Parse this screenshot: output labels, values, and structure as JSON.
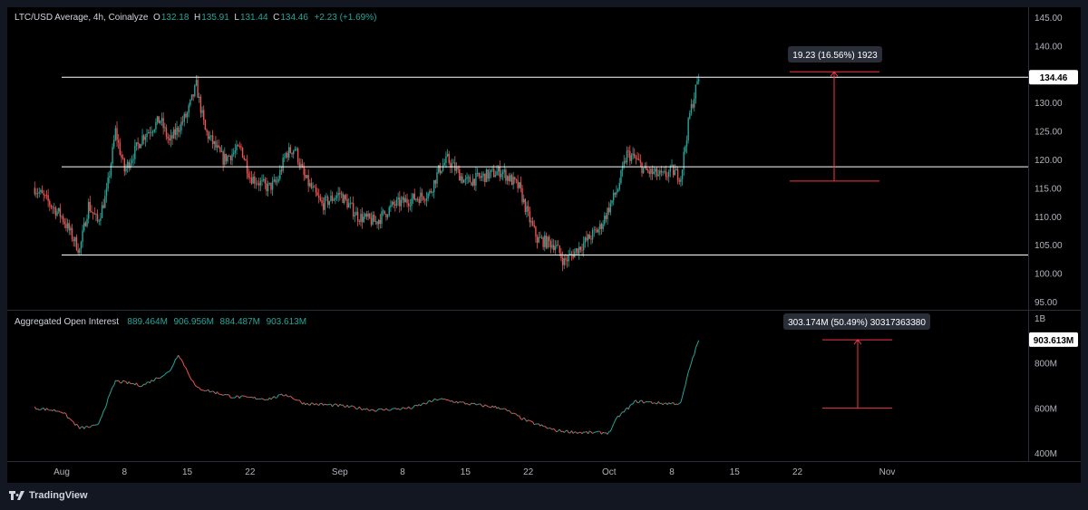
{
  "legend": {
    "symbol": "LTC/USD Average, 4h, Coinalyze",
    "open_label": "O",
    "open": "132.18",
    "high_label": "H",
    "high": "135.91",
    "low_label": "L",
    "low": "131.44",
    "close_label": "C",
    "close": "134.46",
    "change": "+2.23 (+1.69%)"
  },
  "oi_legend": {
    "name": "Aggregated Open Interest",
    "v1": "889.464M",
    "v2": "906.956M",
    "v3": "884.487M",
    "v4": "903.613M"
  },
  "brand": "TradingView",
  "colors": {
    "up": "#26a69a",
    "down": "#ef5350",
    "measure": "#f23645",
    "bg": "#000000",
    "frame": "#131722",
    "line": "#ffffff"
  },
  "chart_data": [
    {
      "type": "candlestick",
      "series": [
        {
          "name": "LTC/USD Average, 4h, Coinalyze"
        }
      ],
      "ylim": [
        93,
        146
      ],
      "yticks": [
        "95.00",
        "100.00",
        "105.00",
        "110.00",
        "115.00",
        "120.00",
        "125.00",
        "130.00",
        "135.00",
        "140.00",
        "145.00"
      ],
      "xticks": [
        "Aug",
        "8",
        "15",
        "22",
        "Sep",
        "8",
        "15",
        "22",
        "Oct",
        "8",
        "15",
        "22",
        "Nov"
      ],
      "last_price_label": "134.46",
      "horizontal_lines": [
        134.46,
        118.7,
        103.2
      ],
      "measure": {
        "label": "19.23 (16.56%) 1923",
        "from": 116.2,
        "to": 135.4
      },
      "path": [
        [
          "Jul 29",
          115
        ],
        [
          "Aug 1",
          110
        ],
        [
          "Aug 2",
          107
        ],
        [
          "Aug 3",
          104
        ],
        [
          "Aug 4",
          112
        ],
        [
          "Aug 5",
          109
        ],
        [
          "Aug 6",
          114
        ],
        [
          "Aug 7",
          125
        ],
        [
          "Aug 8",
          118
        ],
        [
          "Aug 10",
          124
        ],
        [
          "Aug 12",
          127
        ],
        [
          "Aug 13",
          123
        ],
        [
          "Aug 15",
          128
        ],
        [
          "Aug 16",
          133
        ],
        [
          "Aug 17",
          125
        ],
        [
          "Aug 19",
          120
        ],
        [
          "Aug 21",
          122
        ],
        [
          "Aug 22",
          117
        ],
        [
          "Aug 24",
          115
        ],
        [
          "Aug 25",
          116
        ],
        [
          "Aug 26",
          121
        ],
        [
          "Aug 27",
          122
        ],
        [
          "Aug 28",
          117
        ],
        [
          "Aug 30",
          112
        ],
        [
          "Sep 1",
          114
        ],
        [
          "Sep 3",
          110
        ],
        [
          "Sep 5",
          109
        ],
        [
          "Sep 7",
          112
        ],
        [
          "Sep 9",
          113
        ],
        [
          "Sep 11",
          114
        ],
        [
          "Sep 12",
          118
        ],
        [
          "Sep 13",
          120
        ],
        [
          "Sep 15",
          116
        ],
        [
          "Sep 17",
          117
        ],
        [
          "Sep 19",
          118
        ],
        [
          "Sep 21",
          115
        ],
        [
          "Sep 22",
          110
        ],
        [
          "Sep 23",
          106
        ],
        [
          "Sep 25",
          105
        ],
        [
          "Sep 26",
          102
        ],
        [
          "Sep 28",
          105
        ],
        [
          "Sep 30",
          108
        ],
        [
          "Oct 2",
          115
        ],
        [
          "Oct 3",
          121
        ],
        [
          "Oct 4",
          120
        ],
        [
          "Oct 5",
          118
        ],
        [
          "Oct 7",
          117
        ],
        [
          "Oct 8",
          118
        ],
        [
          "Oct 9",
          117
        ],
        [
          "Oct 10",
          128
        ],
        [
          "Oct 11",
          134.46
        ]
      ]
    },
    {
      "type": "line",
      "series": [
        {
          "name": "Aggregated Open Interest"
        }
      ],
      "ylim": [
        360,
        1040
      ],
      "yticks": [
        "400M",
        "600M",
        "800M",
        "1B"
      ],
      "last_value_label": "903.613M",
      "measure": {
        "label": "303.174M (50.49%) 30317363380",
        "from": 600,
        "to": 903
      },
      "path": [
        [
          "Jul 29",
          600
        ],
        [
          "Aug 1",
          585
        ],
        [
          "Aug 3",
          510
        ],
        [
          "Aug 5",
          520
        ],
        [
          "Aug 7",
          720
        ],
        [
          "Aug 10",
          700
        ],
        [
          "Aug 13",
          760
        ],
        [
          "Aug 14",
          840
        ],
        [
          "Aug 16",
          690
        ],
        [
          "Aug 20",
          650
        ],
        [
          "Aug 24",
          640
        ],
        [
          "Aug 26",
          660
        ],
        [
          "Aug 28",
          620
        ],
        [
          "Sep 1",
          610
        ],
        [
          "Sep 5",
          590
        ],
        [
          "Sep 9",
          600
        ],
        [
          "Sep 12",
          640
        ],
        [
          "Sep 15",
          620
        ],
        [
          "Sep 19",
          600
        ],
        [
          "Sep 22",
          540
        ],
        [
          "Sep 25",
          500
        ],
        [
          "Sep 28",
          490
        ],
        [
          "Oct 1",
          490
        ],
        [
          "Oct 2",
          560
        ],
        [
          "Oct 4",
          630
        ],
        [
          "Oct 7",
          620
        ],
        [
          "Oct 9",
          620
        ],
        [
          "Oct 10",
          780
        ],
        [
          "Oct 11",
          903
        ]
      ]
    }
  ]
}
